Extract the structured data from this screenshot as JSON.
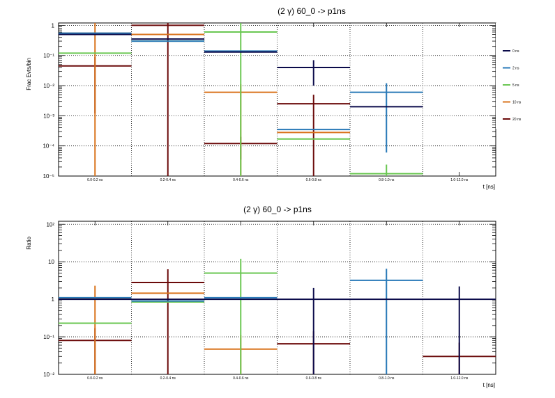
{
  "colors": {
    "0 ns": "#0a0a4a",
    "2 ns": "#2a7ab8",
    "5 ns": "#6ac752",
    "10 ns": "#d9731c",
    "20 ns": "#6b0a0a"
  },
  "chart_data": [
    {
      "type": "bar",
      "title": "(2 γ) 60_0 -> p1ns",
      "xlabel": "t [ns]",
      "ylabel": "Frac Evts/bin",
      "yscale": "log",
      "ylim": [
        1e-05,
        1.2
      ],
      "y_ticks": [
        {
          "value": 1,
          "label": "1"
        },
        {
          "value": 0.1,
          "label": "10⁻¹"
        },
        {
          "value": 0.01,
          "label": "10⁻²"
        },
        {
          "value": 0.001,
          "label": "10⁻³"
        },
        {
          "value": 0.0001,
          "label": "10⁻⁴"
        },
        {
          "value": 1e-05,
          "label": "10⁻⁵"
        }
      ],
      "categories": [
        "0.0-0.2 ns",
        "0.2-0.4 ns",
        "0.4-0.6 ns",
        "0.6-0.8 ns",
        "0.8-1.0 ns",
        "1.0-12.0 ns"
      ],
      "grid": true,
      "legend_placement": "right",
      "series": [
        {
          "name": "0 ns",
          "values": [
            0.5,
            0.35,
            0.13,
            0.04,
            0.002,
            null
          ],
          "err_low": [
            null,
            null,
            null,
            0.01,
            null,
            null
          ],
          "err_high": [
            null,
            null,
            null,
            0.07,
            null,
            null
          ]
        },
        {
          "name": "2 ns",
          "values": [
            0.55,
            0.3,
            0.14,
            0.00035,
            0.006,
            null
          ],
          "err_low": [
            null,
            null,
            null,
            null,
            6e-05,
            null
          ],
          "err_high": [
            null,
            null,
            null,
            null,
            0.012,
            null
          ]
        },
        {
          "name": "5 ns",
          "values": [
            0.12,
            0.3,
            0.6,
            0.00017,
            1.2e-05,
            null
          ],
          "err_low": [
            null,
            null,
            1e-05,
            null,
            1e-05,
            null
          ],
          "err_high": [
            null,
            null,
            1.2,
            null,
            2.4e-05,
            null
          ]
        },
        {
          "name": "10 ns",
          "values": [
            0.55,
            0.5,
            0.006,
            0.00028,
            null,
            null
          ],
          "err_low": [
            1e-05,
            null,
            1e-05,
            null,
            null,
            null
          ],
          "err_high": [
            1.2,
            null,
            0.011,
            null,
            null,
            null
          ]
        },
        {
          "name": "20 ns",
          "values": [
            0.045,
            1.0,
            0.00012,
            0.0025,
            null,
            null
          ],
          "err_low": [
            0.0012,
            1e-05,
            3.5e-05,
            1e-05,
            null,
            null
          ],
          "err_high": [
            0.09,
            1.2,
            0.0002,
            0.005,
            null,
            null
          ]
        }
      ]
    },
    {
      "type": "bar",
      "title": "(2 γ) 60_0 -> p1ns",
      "xlabel": "t [ns]",
      "ylabel": "Ratio",
      "yscale": "log",
      "ylim": [
        0.01,
        120
      ],
      "y_ticks": [
        {
          "value": 100,
          "label": "10²"
        },
        {
          "value": 10,
          "label": "10"
        },
        {
          "value": 1,
          "label": "1"
        },
        {
          "value": 0.1,
          "label": "10⁻¹"
        },
        {
          "value": 0.01,
          "label": "10⁻²"
        }
      ],
      "categories": [
        "0.0-0.2 ns",
        "0.2-0.4 ns",
        "0.4-0.6 ns",
        "0.6-0.8 ns",
        "0.8-1.0 ns",
        "1.0-12.0 ns"
      ],
      "grid": true,
      "series": [
        {
          "name": "0 ns",
          "values": [
            1,
            1,
            1,
            1,
            1,
            1
          ],
          "err_low": [
            null,
            null,
            null,
            0.01,
            null,
            0.01
          ],
          "err_high": [
            null,
            null,
            null,
            2.0,
            null,
            2.2
          ]
        },
        {
          "name": "2 ns",
          "values": [
            1.1,
            0.9,
            1.1,
            null,
            3.2,
            null
          ],
          "err_low": [
            null,
            null,
            null,
            null,
            0.01,
            null
          ],
          "err_high": [
            null,
            null,
            null,
            null,
            6.5,
            null
          ]
        },
        {
          "name": "5 ns",
          "values": [
            0.23,
            0.85,
            5.0,
            null,
            null,
            null
          ],
          "err_low": [
            null,
            null,
            0.01,
            null,
            null,
            null
          ],
          "err_high": [
            null,
            null,
            12,
            null,
            null,
            null
          ]
        },
        {
          "name": "10 ns",
          "values": [
            1.05,
            1.45,
            0.047,
            null,
            null,
            null
          ],
          "err_low": [
            0.01,
            null,
            0.01,
            null,
            null,
            null
          ],
          "err_high": [
            2.3,
            null,
            0.11,
            null,
            null,
            null
          ]
        },
        {
          "name": "20 ns",
          "values": [
            0.08,
            2.8,
            null,
            0.065,
            null,
            0.03
          ],
          "err_low": [
            0.01,
            0.01,
            null,
            0.01,
            null,
            0.01
          ],
          "err_high": [
            0.17,
            6.3,
            null,
            0.14,
            null,
            0.07
          ]
        }
      ]
    }
  ]
}
